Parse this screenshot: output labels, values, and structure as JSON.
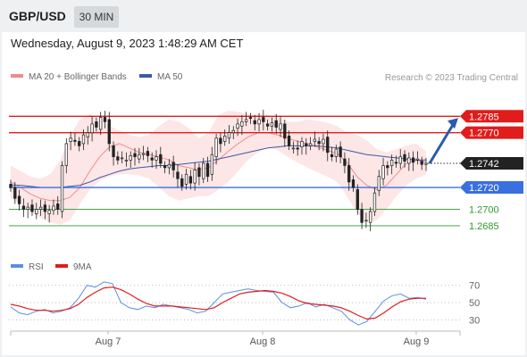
{
  "header": {
    "pair": "GBP/USD",
    "timeframe": "30 MIN",
    "datetime": "Wednesday, August 9, 2023 1:48:29 AM CET"
  },
  "colors": {
    "bollinger_line": "#f28a8a",
    "bollinger_fill": "#fde2e2",
    "ma50": "#3a5aa6",
    "resistance": "#e01c1c",
    "support_blue": "#3a6fe0",
    "support_green": "#2e9a2e",
    "candle": "#222222",
    "rsi": "#5a8fe0",
    "rsi_ma": "#e01c1c",
    "arrow": "#2a5caa",
    "current_price_badge": "#222222"
  },
  "chart_data": [
    {
      "type": "line",
      "title": "",
      "legend": [
        {
          "name": "MA 20 + Bollinger Bands",
          "color": "#f28a8a"
        },
        {
          "name": "MA 50",
          "color": "#3a5aa6"
        }
      ],
      "copyright": "Research © 2023 Trading Central",
      "x_tick_labels": [
        "Aug 7",
        "Aug 8",
        "Aug 9"
      ],
      "ylim": [
        1.2676,
        1.2795
      ],
      "current_price": 1.2742,
      "current_price_label": "1.2742",
      "price_levels": [
        {
          "value": 1.2785,
          "label": "1.2785",
          "kind": "resistance"
        },
        {
          "value": 1.277,
          "label": "1.2770",
          "kind": "resistance"
        },
        {
          "value": 1.272,
          "label": "1.2720",
          "kind": "support_blue"
        },
        {
          "value": 1.27,
          "label": "1.2700",
          "kind": "support_green"
        },
        {
          "value": 1.2685,
          "label": "1.2685",
          "kind": "support_green"
        }
      ],
      "forecast_arrow": {
        "from": 1.2742,
        "to": 1.2785
      },
      "close_series": [
        1.272,
        1.271,
        1.2705,
        1.27,
        1.2702,
        1.2698,
        1.27,
        1.2702,
        1.2698,
        1.2699,
        1.2703,
        1.27,
        1.274,
        1.276,
        1.2765,
        1.2762,
        1.2758,
        1.2768,
        1.277,
        1.2778,
        1.2775,
        1.2784,
        1.278,
        1.276,
        1.2748,
        1.2745,
        1.2747,
        1.2745,
        1.2749,
        1.2748,
        1.275,
        1.2751,
        1.2749,
        1.2745,
        1.2748,
        1.2742,
        1.2738,
        1.2741,
        1.2736,
        1.2728,
        1.2721,
        1.2732,
        1.2724,
        1.2736,
        1.273,
        1.2742,
        1.273,
        1.275,
        1.2765,
        1.276,
        1.2767,
        1.277,
        1.2772,
        1.2778,
        1.278,
        1.2782,
        1.2783,
        1.2778,
        1.2782,
        1.278,
        1.2776,
        1.2779,
        1.2775,
        1.2778,
        1.2765,
        1.2758,
        1.2756,
        1.2755,
        1.2762,
        1.2758,
        1.276,
        1.2764,
        1.276,
        1.2764,
        1.2752,
        1.2748,
        1.2755,
        1.2748,
        1.274,
        1.2725,
        1.272,
        1.27,
        1.2688,
        1.269,
        1.2698,
        1.2715,
        1.273,
        1.274,
        1.2738,
        1.2745,
        1.2742,
        1.2748,
        1.2744,
        1.2747,
        1.2743,
        1.2746,
        1.2741,
        1.2742
      ],
      "ma20": [
        1.2725,
        1.272,
        1.2714,
        1.271,
        1.2708,
        1.2708,
        1.2711,
        1.272,
        1.2735,
        1.2748,
        1.2757,
        1.276,
        1.2756,
        1.2752,
        1.275,
        1.2748,
        1.2745,
        1.274,
        1.2738,
        1.2736,
        1.2738,
        1.2745,
        1.2753,
        1.276,
        1.2766,
        1.277,
        1.277,
        1.2768,
        1.2765,
        1.2762,
        1.276,
        1.2757,
        1.2754,
        1.2751,
        1.2743,
        1.273,
        1.2722,
        1.2718,
        1.2722,
        1.2732,
        1.2742,
        1.2745,
        1.2743
      ],
      "ma20_span": [
        0,
        42
      ],
      "bb_upper": [
        1.274,
        1.2735,
        1.273,
        1.2728,
        1.2732,
        1.2745,
        1.2768,
        1.2782,
        1.2787,
        1.2782,
        1.2776,
        1.2772,
        1.2768,
        1.2766,
        1.2768,
        1.2776,
        1.2782,
        1.278,
        1.2774,
        1.2765,
        1.277,
        1.2786,
        1.279,
        1.2789,
        1.2787,
        1.2787,
        1.2786,
        1.2784,
        1.278,
        1.278,
        1.2782,
        1.2781,
        1.2779,
        1.2776,
        1.277,
        1.2768,
        1.2763,
        1.2755,
        1.2752,
        1.2755,
        1.2758,
        1.276,
        1.2753
      ],
      "bb_lower": [
        1.271,
        1.2705,
        1.2698,
        1.2692,
        1.2688,
        1.2686,
        1.269,
        1.2705,
        1.2718,
        1.2726,
        1.273,
        1.2732,
        1.2732,
        1.2731,
        1.2728,
        1.272,
        1.2712,
        1.2708,
        1.271,
        1.2712,
        1.2712,
        1.2718,
        1.2725,
        1.2735,
        1.2745,
        1.2752,
        1.2756,
        1.2754,
        1.2748,
        1.2743,
        1.2738,
        1.2734,
        1.273,
        1.2725,
        1.2712,
        1.2697,
        1.2688,
        1.269,
        1.27,
        1.2712,
        1.2722,
        1.2728,
        1.2732
      ],
      "ma50": [
        1.2722,
        1.2722,
        1.2721,
        1.272,
        1.272,
        1.272,
        1.2721,
        1.2722,
        1.2725,
        1.2729,
        1.2732,
        1.2735,
        1.2737,
        1.2738,
        1.2739,
        1.274,
        1.274,
        1.2741,
        1.2742,
        1.2743,
        1.2744,
        1.2746,
        1.2748,
        1.275,
        1.2752,
        1.2754,
        1.2756,
        1.2757,
        1.2758,
        1.2758,
        1.2758,
        1.2758,
        1.2757,
        1.2756,
        1.2754,
        1.2752,
        1.275,
        1.2749,
        1.2748,
        1.2747,
        1.2746,
        1.2745,
        1.2745
      ],
      "ma50_span": [
        0,
        42
      ]
    },
    {
      "type": "line",
      "title": "",
      "legend": [
        {
          "name": "RSI",
          "color": "#5a8fe0"
        },
        {
          "name": "9MA",
          "color": "#e01c1c"
        }
      ],
      "ylim": [
        20,
        78
      ],
      "y_ticks": [
        70,
        50,
        30
      ],
      "y_tick_labels": [
        "70",
        "50",
        "30"
      ],
      "rsi": [
        45,
        38,
        36,
        40,
        42,
        38,
        40,
        44,
        55,
        70,
        68,
        74,
        72,
        50,
        44,
        42,
        46,
        44,
        48,
        46,
        44,
        42,
        38,
        40,
        50,
        60,
        62,
        64,
        66,
        64,
        63,
        62,
        50,
        44,
        46,
        50,
        45,
        48,
        44,
        40,
        30,
        24,
        28,
        40,
        52,
        58,
        60,
        55,
        56,
        54
      ],
      "rsi_ma": [
        48,
        46,
        43,
        41,
        41,
        40,
        41,
        43,
        48,
        56,
        62,
        67,
        68,
        65,
        60,
        54,
        49,
        46,
        46,
        46,
        45,
        44,
        43,
        42,
        44,
        50,
        55,
        60,
        62,
        63,
        64,
        63,
        61,
        57,
        52,
        49,
        48,
        47,
        46,
        44,
        40,
        35,
        31,
        32,
        38,
        45,
        51,
        54,
        55,
        55
      ]
    }
  ]
}
